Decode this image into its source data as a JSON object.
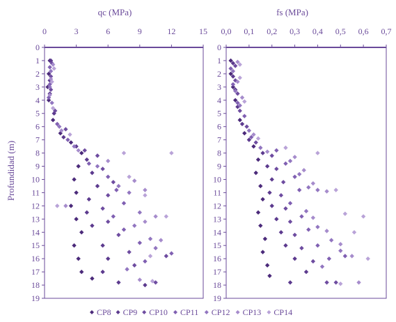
{
  "chart_data": [
    {
      "type": "scatter",
      "title": "qc (MPa)",
      "xlabel": "qc (MPa)",
      "ylabel": "Profundidad (m)",
      "xlim": [
        0,
        15
      ],
      "ylim": [
        0,
        19
      ],
      "y_inverted": true,
      "x_ticks": [
        "0",
        "3",
        "6",
        "9",
        "12",
        "15"
      ],
      "y_ticks": [
        "0",
        "1",
        "2",
        "3",
        "4",
        "5",
        "6",
        "7",
        "8",
        "9",
        "10",
        "11",
        "12",
        "13",
        "14",
        "15",
        "16",
        "17",
        "18",
        "19"
      ],
      "grid": false,
      "series": [
        {
          "name": "CP8",
          "points": [
            [
              0.5,
              1.0
            ],
            [
              0.4,
              2.0
            ],
            [
              0.3,
              3.0
            ],
            [
              0.4,
              4.0
            ],
            [
              0.8,
              5.5
            ],
            [
              1.5,
              6.5
            ],
            [
              2.5,
              7.2
            ],
            [
              3.5,
              8.0
            ],
            [
              3.2,
              9.0
            ],
            [
              2.8,
              10.0
            ],
            [
              3.0,
              11.0
            ],
            [
              2.5,
              12.0
            ],
            [
              3.0,
              13.0
            ],
            [
              3.5,
              14.0
            ],
            [
              2.8,
              15.0
            ],
            [
              3.2,
              16.0
            ],
            [
              3.5,
              17.0
            ],
            [
              4.5,
              17.5
            ]
          ]
        },
        {
          "name": "CP9",
          "points": [
            [
              0.6,
              1.0
            ],
            [
              0.5,
              2.5
            ],
            [
              0.5,
              3.5
            ],
            [
              0.9,
              5.0
            ],
            [
              1.8,
              6.8
            ],
            [
              3.0,
              7.5
            ],
            [
              4.0,
              8.5
            ],
            [
              4.5,
              9.5
            ],
            [
              5.0,
              10.5
            ],
            [
              4.2,
              11.5
            ],
            [
              4.0,
              12.5
            ],
            [
              4.5,
              13.5
            ],
            [
              5.5,
              15.0
            ],
            [
              6.0,
              16.0
            ],
            [
              5.5,
              17.0
            ],
            [
              7.0,
              17.8
            ],
            [
              9.5,
              18.0
            ]
          ]
        },
        {
          "name": "CP10",
          "points": [
            [
              0.7,
              1.2
            ],
            [
              0.6,
              2.2
            ],
            [
              0.6,
              3.2
            ],
            [
              1.0,
              4.8
            ],
            [
              2.0,
              6.2
            ],
            [
              3.8,
              7.8
            ],
            [
              5.0,
              8.2
            ],
            [
              5.5,
              9.2
            ],
            [
              6.5,
              10.2
            ],
            [
              6.0,
              11.2
            ],
            [
              5.5,
              12.2
            ],
            [
              6.0,
              13.2
            ],
            [
              7.0,
              14.2
            ],
            [
              8.0,
              15.5
            ],
            [
              8.5,
              16.5
            ],
            [
              10.5,
              17.8
            ],
            [
              11.5,
              15.8
            ]
          ]
        },
        {
          "name": "CP11",
          "points": [
            [
              0.5,
              1.5
            ],
            [
              0.5,
              2.8
            ],
            [
              0.4,
              3.8
            ],
            [
              1.2,
              5.8
            ],
            [
              2.2,
              7.0
            ],
            [
              4.2,
              8.8
            ],
            [
              6.0,
              9.8
            ],
            [
              6.8,
              10.8
            ],
            [
              7.5,
              11.8
            ],
            [
              6.5,
              12.8
            ],
            [
              7.5,
              13.8
            ],
            [
              9.0,
              14.8
            ],
            [
              9.5,
              16.2
            ],
            [
              12.0,
              15.6
            ]
          ]
        },
        {
          "name": "CP12",
          "points": [
            [
              0.6,
              1.8
            ],
            [
              0.5,
              3.0
            ],
            [
              0.7,
              4.2
            ],
            [
              1.4,
              6.0
            ],
            [
              2.8,
              7.5
            ],
            [
              5.0,
              9.0
            ],
            [
              7.0,
              10.5
            ],
            [
              8.0,
              11.0
            ],
            [
              9.0,
              12.5
            ],
            [
              8.5,
              13.5
            ],
            [
              10.0,
              14.5
            ],
            [
              10.5,
              15.2
            ],
            [
              7.8,
              16.8
            ]
          ]
        },
        {
          "name": "CP13",
          "points": [
            [
              0.8,
              1.3
            ],
            [
              0.6,
              2.4
            ],
            [
              0.5,
              3.6
            ],
            [
              1.6,
              6.3
            ],
            [
              3.2,
              7.8
            ],
            [
              6.0,
              8.6
            ],
            [
              8.5,
              10.1
            ],
            [
              9.5,
              10.8
            ],
            [
              10.5,
              12.8
            ],
            [
              9.5,
              13.2
            ],
            [
              11.0,
              14.6
            ],
            [
              2.0,
              12.0
            ],
            [
              9.0,
              17.6
            ]
          ]
        },
        {
          "name": "CP14",
          "points": [
            [
              0.9,
              1.6
            ],
            [
              0.7,
              2.6
            ],
            [
              0.8,
              4.6
            ],
            [
              2.4,
              6.6
            ],
            [
              7.5,
              8.0
            ],
            [
              12.0,
              8.0
            ],
            [
              8.0,
              9.8
            ],
            [
              9.5,
              11.2
            ],
            [
              11.5,
              12.8
            ],
            [
              1.2,
              12.0
            ],
            [
              10.0,
              15.8
            ],
            [
              10.2,
              17.7
            ]
          ]
        }
      ]
    },
    {
      "type": "scatter",
      "title": "fs (MPa)",
      "xlabel": "fs (MPa)",
      "ylabel": "",
      "xlim": [
        0,
        0.7
      ],
      "ylim": [
        0,
        19
      ],
      "y_inverted": true,
      "x_ticks": [
        "0,0",
        "0,1",
        "0,2",
        "0,3",
        "0,4",
        "0,5",
        "0,6",
        "0,7"
      ],
      "y_ticks": [
        "0",
        "1",
        "2",
        "3",
        "4",
        "5",
        "6",
        "7",
        "8",
        "9",
        "10",
        "11",
        "12",
        "13",
        "14",
        "15",
        "16",
        "17",
        "18",
        "19"
      ],
      "grid": false,
      "series": [
        {
          "name": "CP8",
          "points": [
            [
              0.02,
              1.0
            ],
            [
              0.02,
              2.0
            ],
            [
              0.03,
              3.0
            ],
            [
              0.04,
              4.0
            ],
            [
              0.06,
              5.5
            ],
            [
              0.08,
              6.5
            ],
            [
              0.12,
              7.5
            ],
            [
              0.14,
              8.5
            ],
            [
              0.13,
              9.5
            ],
            [
              0.15,
              10.5
            ],
            [
              0.16,
              11.5
            ],
            [
              0.14,
              12.5
            ],
            [
              0.15,
              13.5
            ],
            [
              0.17,
              14.5
            ],
            [
              0.16,
              15.5
            ],
            [
              0.18,
              16.5
            ],
            [
              0.19,
              17.3
            ]
          ]
        },
        {
          "name": "CP9",
          "points": [
            [
              0.03,
              1.2
            ],
            [
              0.03,
              2.2
            ],
            [
              0.04,
              3.2
            ],
            [
              0.05,
              4.5
            ],
            [
              0.07,
              5.8
            ],
            [
              0.1,
              7.0
            ],
            [
              0.16,
              8.0
            ],
            [
              0.18,
              9.0
            ],
            [
              0.2,
              10.0
            ],
            [
              0.19,
              11.0
            ],
            [
              0.2,
              12.0
            ],
            [
              0.22,
              13.0
            ],
            [
              0.24,
              14.0
            ],
            [
              0.26,
              15.0
            ],
            [
              0.3,
              16.0
            ],
            [
              0.35,
              17.0
            ],
            [
              0.28,
              17.8
            ]
          ]
        },
        {
          "name": "CP10",
          "points": [
            [
              0.04,
              1.4
            ],
            [
              0.04,
              2.5
            ],
            [
              0.05,
              3.5
            ],
            [
              0.06,
              4.8
            ],
            [
              0.09,
              6.0
            ],
            [
              0.13,
              7.2
            ],
            [
              0.2,
              8.2
            ],
            [
              0.22,
              9.2
            ],
            [
              0.25,
              10.2
            ],
            [
              0.24,
              11.2
            ],
            [
              0.26,
              12.2
            ],
            [
              0.28,
              13.2
            ],
            [
              0.3,
              14.2
            ],
            [
              0.33,
              15.2
            ],
            [
              0.38,
              16.2
            ],
            [
              0.44,
              17.8
            ],
            [
              0.48,
              17.8
            ]
          ]
        },
        {
          "name": "CP11",
          "points": [
            [
              0.02,
              1.6
            ],
            [
              0.03,
              2.8
            ],
            [
              0.05,
              4.2
            ],
            [
              0.08,
              5.2
            ],
            [
              0.11,
              6.8
            ],
            [
              0.22,
              7.8
            ],
            [
              0.26,
              8.8
            ],
            [
              0.3,
              9.8
            ],
            [
              0.32,
              10.8
            ],
            [
              0.28,
              11.8
            ],
            [
              0.33,
              12.8
            ],
            [
              0.36,
              13.8
            ],
            [
              0.4,
              15.0
            ],
            [
              0.45,
              16.0
            ],
            [
              0.52,
              15.8
            ]
          ]
        },
        {
          "name": "CP12",
          "points": [
            [
              0.03,
              1.8
            ],
            [
              0.04,
              3.3
            ],
            [
              0.06,
              4.4
            ],
            [
              0.1,
              6.3
            ],
            [
              0.15,
              7.6
            ],
            [
              0.28,
              8.6
            ],
            [
              0.32,
              9.6
            ],
            [
              0.36,
              10.6
            ],
            [
              0.4,
              10.8
            ],
            [
              0.35,
              12.4
            ],
            [
              0.4,
              13.6
            ],
            [
              0.46,
              14.6
            ],
            [
              0.5,
              15.4
            ],
            [
              0.42,
              16.6
            ]
          ]
        },
        {
          "name": "CP13",
          "points": [
            [
              0.05,
              1.1
            ],
            [
              0.05,
              2.6
            ],
            [
              0.07,
              3.8
            ],
            [
              0.12,
              6.6
            ],
            [
              0.18,
              7.9
            ],
            [
              0.3,
              8.3
            ],
            [
              0.34,
              9.3
            ],
            [
              0.38,
              10.3
            ],
            [
              0.44,
              10.9
            ],
            [
              0.38,
              12.9
            ],
            [
              0.44,
              13.9
            ],
            [
              0.5,
              14.9
            ],
            [
              0.55,
              15.8
            ],
            [
              0.58,
              17.8
            ]
          ]
        },
        {
          "name": "CP14",
          "points": [
            [
              0.06,
              1.3
            ],
            [
              0.06,
              2.3
            ],
            [
              0.08,
              4.1
            ],
            [
              0.14,
              6.9
            ],
            [
              0.26,
              7.6
            ],
            [
              0.4,
              8.0
            ],
            [
              0.48,
              10.8
            ],
            [
              0.52,
              12.6
            ],
            [
              0.6,
              12.8
            ],
            [
              0.56,
              14.0
            ],
            [
              0.62,
              16.0
            ],
            [
              0.5,
              17.9
            ]
          ]
        }
      ]
    }
  ],
  "legend": {
    "placement": "bottom",
    "entries": [
      "CP8",
      "CP9",
      "CP10",
      "CP11",
      "CP12",
      "CP13",
      "CP14"
    ]
  },
  "colors": [
    "#4b2a7a",
    "#5c3a8e",
    "#6e4ca0",
    "#8060b2",
    "#9276c0",
    "#a68ccc",
    "#b9a3d8"
  ],
  "axis_color": "#6a4a9a",
  "marker_icon": "diamond-marker"
}
